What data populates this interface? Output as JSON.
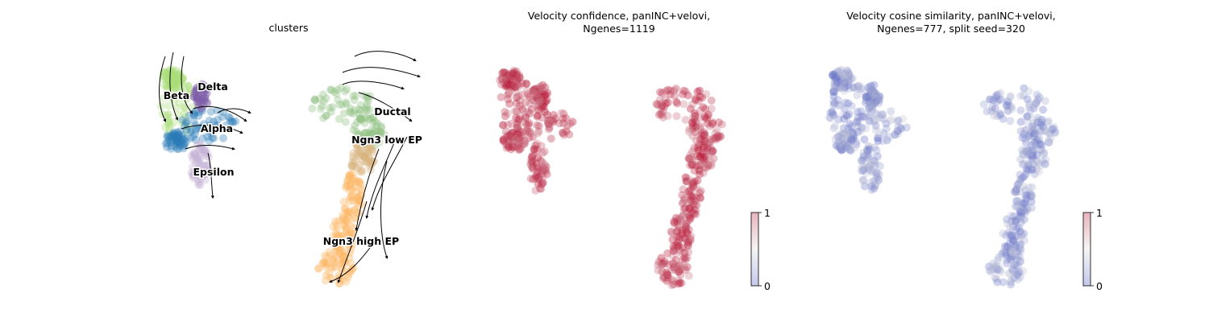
{
  "chart_data": [
    {
      "type": "scatter",
      "title": "clusters",
      "legend": "on data",
      "streamlines": true,
      "clusters": [
        {
          "name": "Beta",
          "color": "#aadd77"
        },
        {
          "name": "Delta",
          "color": "#7f5fa8"
        },
        {
          "name": "Alpha",
          "color": "#2a7bb8"
        },
        {
          "name": "Epsilon",
          "color": "#c2aed3"
        },
        {
          "name": "Ductal",
          "color": "#8fbf81"
        },
        {
          "name": "Ngn3 low EP",
          "color": "#d8b37a"
        },
        {
          "name": "Ngn3 high EP",
          "color": "#fbb462"
        }
      ]
    },
    {
      "type": "scatter",
      "title_lines": [
        "Velocity confidence, panINC+velovi,",
        "Ngenes=1119"
      ],
      "colormap": "coolwarm",
      "colorbar": {
        "min": 0,
        "max": 1,
        "ticks": [
          "0",
          "1"
        ]
      },
      "color_range": [
        0.7,
        1.0
      ]
    },
    {
      "type": "scatter",
      "title_lines": [
        "Velocity cosine similarity, panINC+velovi,",
        "Ngenes=777, split seed=320"
      ],
      "colormap": "coolwarm",
      "colorbar": {
        "min": 0,
        "max": 1,
        "ticks": [
          "0",
          "1"
        ]
      },
      "color_range": [
        0.1,
        0.45
      ]
    }
  ]
}
